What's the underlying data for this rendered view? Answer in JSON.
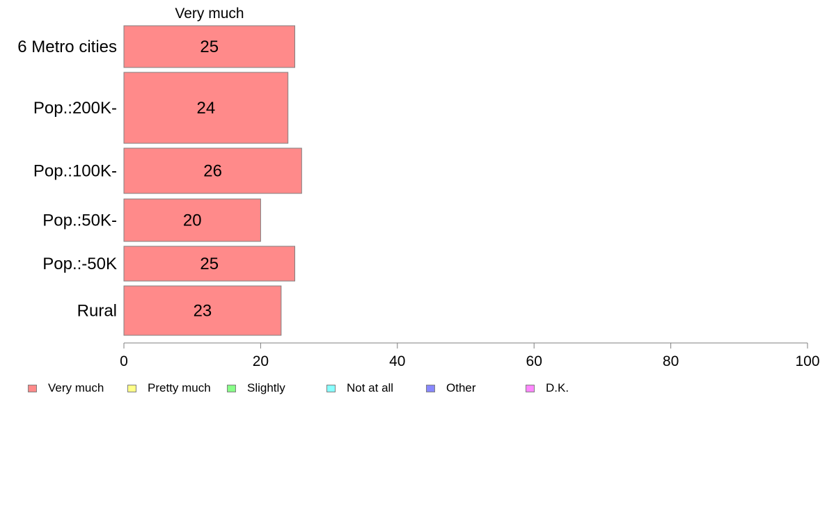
{
  "chart_data": {
    "type": "bar",
    "orientation": "horizontal",
    "title": "Very much",
    "categories": [
      "6 Metro cities",
      "Pop.:200K-",
      "Pop.:100K-",
      "Pop.:50K-",
      "Pop.:-50K",
      "Rural"
    ],
    "series": [
      {
        "name": "Very much",
        "values": [
          25,
          24,
          26,
          20,
          25,
          23
        ]
      }
    ],
    "data_labels": [
      "25",
      "24",
      "26",
      "20",
      "25",
      "23"
    ],
    "xlim": [
      0,
      100
    ],
    "xticks": [
      0,
      20,
      40,
      60,
      80,
      100
    ],
    "xtick_labels": [
      "0",
      "20",
      "40",
      "60",
      "80",
      "100"
    ],
    "grid": false,
    "legend_position": "bottom",
    "bar_color": "#ff8a8a"
  },
  "legend": [
    {
      "label": "Very much",
      "color": "#ff8a8a"
    },
    {
      "label": "Pretty much",
      "color": "#ffff88"
    },
    {
      "label": "Slightly",
      "color": "#88ff88"
    },
    {
      "label": "Not at all",
      "color": "#88ffff"
    },
    {
      "label": "Other",
      "color": "#8888ff"
    },
    {
      "label": "D.K.",
      "color": "#ff88ff"
    }
  ]
}
